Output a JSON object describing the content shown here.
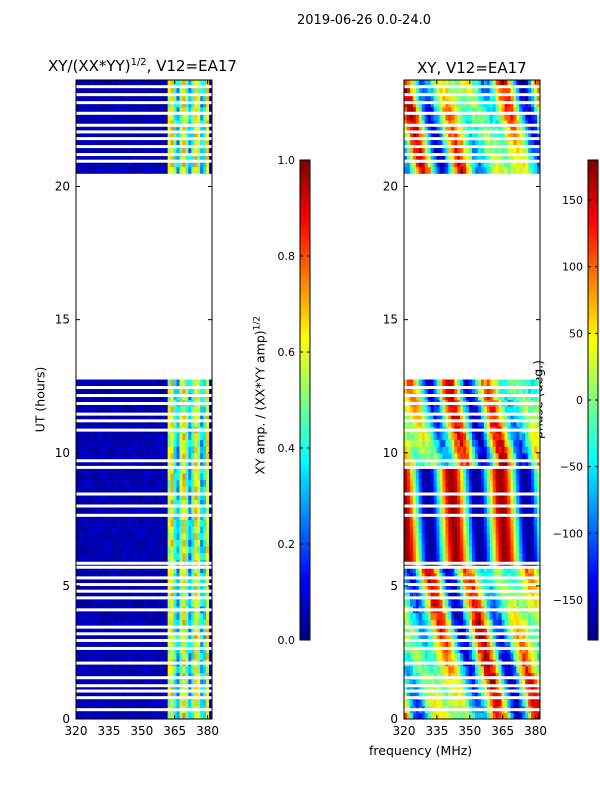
{
  "figure": {
    "suptitle": "2019-06-26 0.0-24.0",
    "xlabel": "frequency (MHz)"
  },
  "colors": {
    "jet": [
      "#00007f",
      "#0000ff",
      "#007fff",
      "#00ffff",
      "#7fff7f",
      "#ffff00",
      "#ff7f00",
      "#ff0000",
      "#7f0000"
    ],
    "background": "#ffffff",
    "flag": "#ffffff"
  },
  "chart_data": [
    {
      "type": "heatmap",
      "title_pre": "XY/(XX*YY)",
      "title_exp": "1/2",
      "title_post": ", V12=EA17",
      "xlabel": "",
      "ylabel": "UT (hours)",
      "xlim": [
        320,
        382
      ],
      "ylim": [
        0,
        24
      ],
      "xticks": [
        320,
        335,
        350,
        365,
        380
      ],
      "yticks": [
        0,
        5,
        10,
        15,
        20
      ],
      "colorbar": {
        "label_pre": "XY amp. / (XX*YY amp)",
        "label_exp": "1/2",
        "range": [
          0.0,
          1.0
        ],
        "ticks": [
          "0.0",
          "0.2",
          "0.4",
          "0.6",
          "0.8",
          "1.0"
        ]
      },
      "blank_ut_ranges": [
        [
          12.85,
          20.6
        ]
      ],
      "flag_rows_ut": [
        0.35,
        0.8,
        1.05,
        1.25,
        1.55,
        2.1,
        2.65,
        2.95,
        3.2,
        3.45,
        4.1,
        4.55,
        4.8,
        5.05,
        5.3,
        5.7,
        5.85,
        7.65,
        8.0,
        8.45,
        9.45,
        9.7,
        10.85,
        11.2,
        11.45,
        11.85,
        12.15,
        12.45,
        20.95,
        21.2,
        21.5,
        21.8,
        22.05,
        22.3,
        22.75,
        23.15,
        23.45,
        23.75
      ],
      "high_channel_range_mhz": [
        362,
        381
      ],
      "value_range": [
        0.0,
        1.0
      ]
    },
    {
      "type": "heatmap",
      "title": "XY, V12=EA17",
      "xlabel": "",
      "ylabel": "",
      "xlim": [
        320,
        382
      ],
      "ylim": [
        0,
        24
      ],
      "xticks": [
        320,
        335,
        350,
        365,
        380
      ],
      "yticks": [
        0,
        5,
        10,
        15,
        20
      ],
      "colorbar": {
        "label": "phase (deg.)",
        "range": [
          -180,
          180
        ],
        "ticks": [
          "150",
          "100",
          "50",
          "0",
          "−50",
          "−100",
          "−150"
        ]
      },
      "blank_ut_ranges": [
        [
          12.85,
          20.6
        ]
      ],
      "flag_rows_ut": [
        0.35,
        0.8,
        1.05,
        1.25,
        1.55,
        2.1,
        2.65,
        2.95,
        3.2,
        3.45,
        4.1,
        4.55,
        4.8,
        5.05,
        5.3,
        5.7,
        5.85,
        7.65,
        8.0,
        8.45,
        9.45,
        9.7,
        10.85,
        11.2,
        11.45,
        11.85,
        12.15,
        12.45,
        20.95,
        21.2,
        21.5,
        21.8,
        22.05,
        22.3,
        22.75,
        23.15,
        23.45,
        23.75
      ],
      "value_range": [
        -180,
        180
      ]
    }
  ]
}
